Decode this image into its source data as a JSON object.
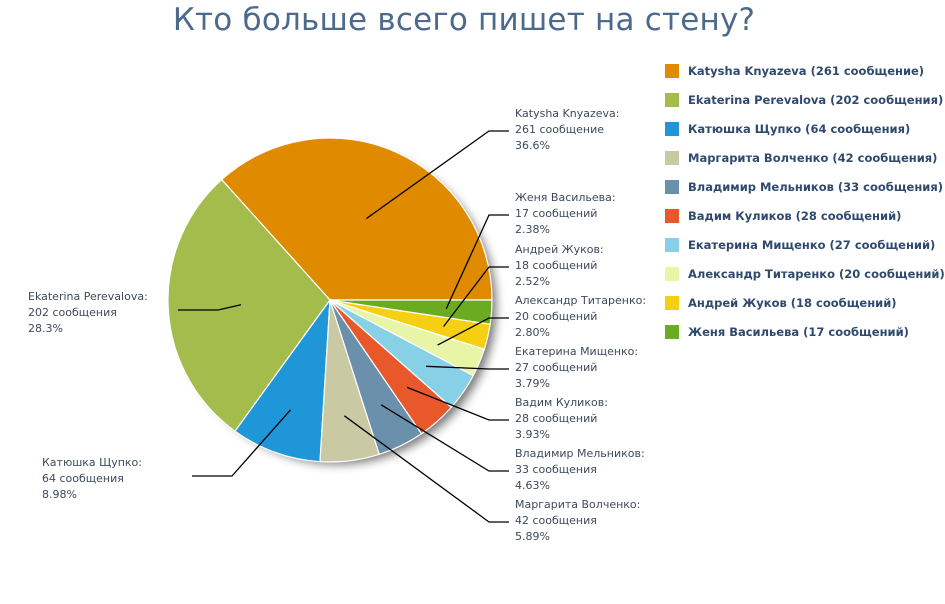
{
  "title": "Кто больше всего пишет на стену?",
  "chart_data": {
    "type": "pie",
    "title": "Кто больше всего пишет на стену?",
    "slices": [
      {
        "name": "Katysha Knyazeva",
        "value": 261,
        "unit": "сообщение",
        "percent": "36.6%",
        "legend": "Katysha Knyazeva (261 сообщение)",
        "color": "#e08a00"
      },
      {
        "name": "Ekaterina Perevalova",
        "value": 202,
        "unit": "сообщения",
        "percent": "28.3%",
        "legend": "Ekaterina Perevalova (202 сообщения)",
        "color": "#a4bc4c"
      },
      {
        "name": "Катюшка Щупко",
        "value": 64,
        "unit": "сообщения",
        "percent": "8.98%",
        "legend": "Катюшка Щупко (64 сообщения)",
        "color": "#1f96d8"
      },
      {
        "name": "Маргарита Волченко",
        "value": 42,
        "unit": "сообщения",
        "percent": "5.89%",
        "legend": "Маргарита Волченко (42 сообщения)",
        "color": "#c9c9a3"
      },
      {
        "name": "Владимир Мельников",
        "value": 33,
        "unit": "сообщения",
        "percent": "4.63%",
        "legend": "Владимир Мельников (33 сообщения)",
        "color": "#6a90ab"
      },
      {
        "name": "Вадим Куликов",
        "value": 28,
        "unit": "сообщений",
        "percent": "3.93%",
        "legend": "Вадим Куликов (28 сообщений)",
        "color": "#e8582a"
      },
      {
        "name": "Екатерина Мищенко",
        "value": 27,
        "unit": "сообщений",
        "percent": "3.79%",
        "legend": "Екатерина Мищенко (27 сообщений)",
        "color": "#88d0e6"
      },
      {
        "name": "Александр Титаренко",
        "value": 20,
        "unit": "сообщений",
        "percent": "2.80%",
        "legend": "Александр Титаренко (20 сообщений)",
        "color": "#e8f5a6"
      },
      {
        "name": "Андрей Жуков",
        "value": 18,
        "unit": "сообщений",
        "percent": "2.52%",
        "legend": "Андрей Жуков (18 сообщений)",
        "color": "#f5cf12"
      },
      {
        "name": "Женя Васильева",
        "value": 17,
        "unit": "сообщений",
        "percent": "2.38%",
        "legend": "Женя Васильева (17 сообщений)",
        "color": "#6aab22"
      }
    ],
    "legend_placement": "right"
  }
}
